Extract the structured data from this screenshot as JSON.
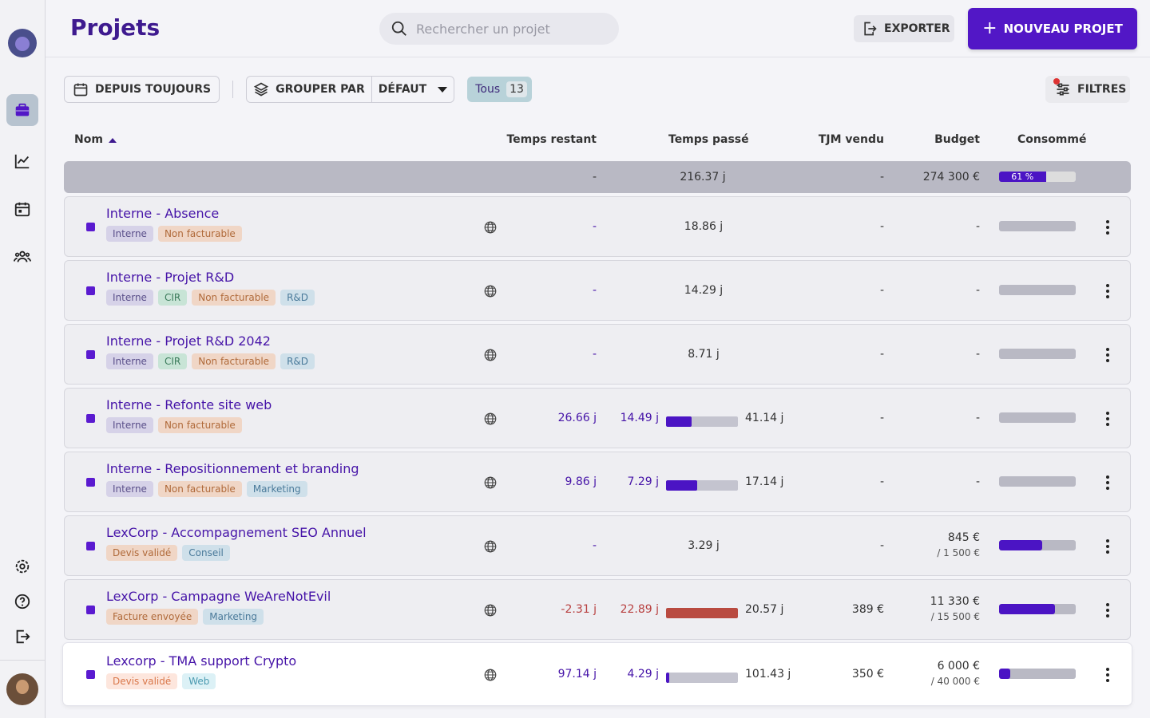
{
  "header": {
    "title": "Projets",
    "search_placeholder": "Rechercher un projet",
    "export_label": "EXPORTER",
    "new_project_label": "NOUVEAU PROJET"
  },
  "toolbar": {
    "period_label": "DEPUIS TOUJOURS",
    "group_by_label": "GROUPER PAR",
    "group_by_value": "DÉFAUT",
    "filter_all_label": "Tous",
    "filter_all_count": "13",
    "filters_label": "FILTRES"
  },
  "table": {
    "columns": {
      "name": "Nom",
      "remaining": "Temps restant",
      "spent": "Temps passé",
      "tjm": "TJM vendu",
      "budget": "Budget",
      "consumed": "Consommé"
    },
    "summary": {
      "remaining": "-",
      "spent": "216.37 j",
      "tjm": "-",
      "budget": "274 300 €",
      "consumed_label": "61 %",
      "consumed_fraction": 0.61
    },
    "rows": [
      {
        "name": "Interne - Absence",
        "tags": [
          {
            "label": "Interne",
            "bg": "#d6d2e8",
            "fg": "#5a4f8a"
          },
          {
            "label": "Non facturable",
            "bg": "#f0d6c6",
            "fg": "#b06a3a"
          }
        ],
        "remaining": "-",
        "remaining_negative": false,
        "spent": "18.86 j",
        "spent_progress": null,
        "total": "",
        "tjm": "-",
        "budget": "-",
        "budget_total": "",
        "consumed_fraction": 0
      },
      {
        "name": "Interne - Projet R&D",
        "tags": [
          {
            "label": "Interne",
            "bg": "#d6d2e8",
            "fg": "#5a4f8a"
          },
          {
            "label": "CIR",
            "bg": "#c8e4d6",
            "fg": "#3a7a5a"
          },
          {
            "label": "Non facturable",
            "bg": "#f0d6c6",
            "fg": "#b06a3a"
          },
          {
            "label": "R&D",
            "bg": "#cfe0ea",
            "fg": "#4a7a9a"
          }
        ],
        "remaining": "-",
        "remaining_negative": false,
        "spent": "14.29 j",
        "spent_progress": null,
        "total": "",
        "tjm": "-",
        "budget": "-",
        "budget_total": "",
        "consumed_fraction": 0
      },
      {
        "name": "Interne - Projet R&D 2042",
        "tags": [
          {
            "label": "Interne",
            "bg": "#d6d2e8",
            "fg": "#5a4f8a"
          },
          {
            "label": "CIR",
            "bg": "#c8e4d6",
            "fg": "#3a7a5a"
          },
          {
            "label": "Non facturable",
            "bg": "#f0d6c6",
            "fg": "#b06a3a"
          },
          {
            "label": "R&D",
            "bg": "#cfe0ea",
            "fg": "#4a7a9a"
          }
        ],
        "remaining": "-",
        "remaining_negative": false,
        "spent": "8.71 j",
        "spent_progress": null,
        "total": "",
        "tjm": "-",
        "budget": "-",
        "budget_total": "",
        "consumed_fraction": 0
      },
      {
        "name": "Interne - Refonte site web",
        "tags": [
          {
            "label": "Interne",
            "bg": "#d6d2e8",
            "fg": "#5a4f8a"
          },
          {
            "label": "Non facturable",
            "bg": "#f0d6c6",
            "fg": "#b06a3a"
          }
        ],
        "remaining": "26.66 j",
        "remaining_negative": false,
        "spent": "14.49 j",
        "spent_progress": 0.35,
        "total": "41.14 j",
        "tjm": "-",
        "budget": "-",
        "budget_total": "",
        "consumed_fraction": 0
      },
      {
        "name": "Interne - Repositionnement et branding",
        "tags": [
          {
            "label": "Interne",
            "bg": "#d6d2e8",
            "fg": "#5a4f8a"
          },
          {
            "label": "Non facturable",
            "bg": "#f0d6c6",
            "fg": "#b06a3a"
          },
          {
            "label": "Marketing",
            "bg": "#cfe0ea",
            "fg": "#4a7a9a"
          }
        ],
        "remaining": "9.86 j",
        "remaining_negative": false,
        "spent": "7.29 j",
        "spent_progress": 0.43,
        "total": "17.14 j",
        "tjm": "-",
        "budget": "-",
        "budget_total": "",
        "consumed_fraction": 0
      },
      {
        "name": "LexCorp - Accompagnement SEO Annuel",
        "tags": [
          {
            "label": "Devis validé",
            "bg": "#f0d6c6",
            "fg": "#b06a3a"
          },
          {
            "label": "Conseil",
            "bg": "#cfe0ea",
            "fg": "#4a7a9a"
          }
        ],
        "remaining": "-",
        "remaining_negative": false,
        "spent": "3.29 j",
        "spent_progress": null,
        "total": "",
        "tjm": "-",
        "budget": "845 €",
        "budget_total": "/ 1 500 €",
        "consumed_fraction": 0.56
      },
      {
        "name": "LexCorp - Campagne WeAreNotEvil",
        "tags": [
          {
            "label": "Facture envoyée",
            "bg": "#f0d6c6",
            "fg": "#b06a3a"
          },
          {
            "label": "Marketing",
            "bg": "#cfe0ea",
            "fg": "#4a7a9a"
          }
        ],
        "remaining": "-2.31 j",
        "remaining_negative": true,
        "spent": "22.89 j",
        "spent_progress": 1.0,
        "spent_over": true,
        "total": "20.57 j",
        "tjm": "389 €",
        "budget": "11 330 €",
        "budget_total": "/ 15 500 €",
        "consumed_fraction": 0.73
      },
      {
        "name": "Lexcorp - TMA support Crypto",
        "selected": true,
        "tags": [
          {
            "label": "Devis validé",
            "bg": "#fde6dd",
            "fg": "#d9774a"
          },
          {
            "label": "Web",
            "bg": "#dcf1f6",
            "fg": "#4a9ab0"
          }
        ],
        "remaining": "97.14 j",
        "remaining_negative": false,
        "spent": "4.29 j",
        "spent_progress": 0.04,
        "total": "101.43 j",
        "tjm": "350 €",
        "budget": "6 000 €",
        "budget_total": "/ 40 000 €",
        "consumed_fraction": 0.15
      }
    ]
  }
}
